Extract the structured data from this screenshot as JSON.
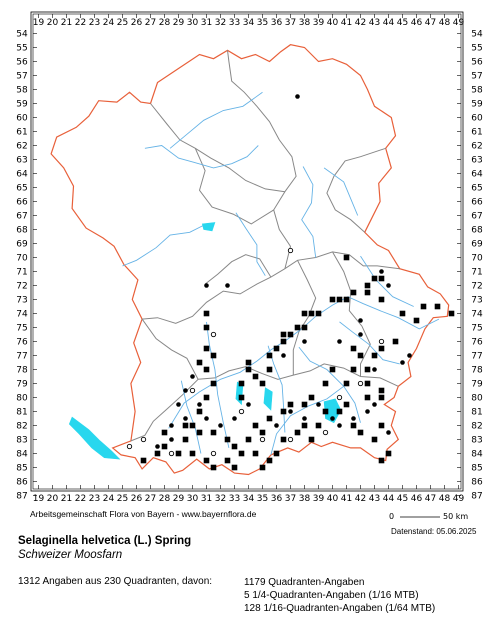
{
  "map": {
    "x_labels": [
      "19",
      "20",
      "21",
      "22",
      "23",
      "24",
      "25",
      "26",
      "27",
      "28",
      "29",
      "30",
      "31",
      "32",
      "33",
      "34",
      "35",
      "36",
      "37",
      "38",
      "39",
      "40",
      "41",
      "42",
      "43",
      "44",
      "45",
      "46",
      "47",
      "48",
      "49"
    ],
    "y_labels": [
      "54",
      "55",
      "56",
      "57",
      "58",
      "59",
      "60",
      "61",
      "62",
      "63",
      "64",
      "65",
      "66",
      "67",
      "68",
      "69",
      "70",
      "71",
      "72",
      "73",
      "74",
      "75",
      "76",
      "77",
      "78",
      "79",
      "80",
      "81",
      "82",
      "83",
      "84",
      "85",
      "86",
      "87"
    ],
    "colors": {
      "border_state": "#e8603a",
      "border_region": "#888888",
      "river": "#66b3e6",
      "lake": "#28d7ee",
      "marker": "#000000"
    },
    "records_quadrant": [
      [
        46.5,
        73.5
      ],
      [
        47.5,
        73.5
      ],
      [
        48.5,
        74.0
      ],
      [
        46.0,
        74.5
      ],
      [
        45.0,
        74.0
      ],
      [
        43.5,
        73.0
      ],
      [
        42.5,
        72.5
      ],
      [
        41.5,
        72.5
      ],
      [
        41.0,
        73.0
      ],
      [
        40.5,
        73.0
      ],
      [
        40.0,
        73.0
      ],
      [
        43.0,
        71.5
      ],
      [
        43.5,
        71.5
      ],
      [
        42.5,
        72.0
      ],
      [
        41.0,
        70.0
      ],
      [
        39.0,
        74.0
      ],
      [
        38.5,
        74.0
      ],
      [
        38.0,
        74.0
      ],
      [
        38.0,
        75.0
      ],
      [
        37.5,
        75.0
      ],
      [
        37.0,
        75.5
      ],
      [
        36.5,
        75.5
      ],
      [
        36.5,
        76.0
      ],
      [
        36.0,
        76.5
      ],
      [
        35.5,
        77.0
      ],
      [
        35.5,
        78.0
      ],
      [
        35.0,
        79.0
      ],
      [
        34.0,
        77.5
      ],
      [
        34.0,
        78.0
      ],
      [
        34.5,
        78.5
      ],
      [
        33.5,
        79.0
      ],
      [
        33.5,
        80.0
      ],
      [
        31.0,
        74.0
      ],
      [
        31.0,
        75.0
      ],
      [
        31.0,
        76.5
      ],
      [
        31.5,
        77.0
      ],
      [
        30.5,
        77.5
      ],
      [
        31.0,
        78.0
      ],
      [
        31.5,
        79.0
      ],
      [
        31.0,
        80.0
      ],
      [
        30.5,
        81.0
      ],
      [
        30.0,
        82.0
      ],
      [
        29.5,
        83.0
      ],
      [
        29.0,
        84.0
      ],
      [
        30.0,
        84.0
      ],
      [
        31.0,
        84.5
      ],
      [
        31.5,
        85.0
      ],
      [
        32.5,
        84.5
      ],
      [
        33.0,
        85.0
      ],
      [
        33.5,
        84.0
      ],
      [
        34.5,
        84.0
      ],
      [
        35.0,
        85.0
      ],
      [
        35.5,
        84.5
      ],
      [
        36.0,
        84.0
      ],
      [
        36.5,
        83.0
      ],
      [
        37.5,
        82.5
      ],
      [
        38.0,
        82.0
      ],
      [
        38.5,
        83.0
      ],
      [
        39.0,
        82.0
      ],
      [
        39.5,
        81.0
      ],
      [
        40.5,
        81.0
      ],
      [
        41.5,
        82.0
      ],
      [
        42.0,
        82.5
      ],
      [
        43.0,
        83.0
      ],
      [
        43.5,
        82.0
      ],
      [
        44.0,
        84.0
      ],
      [
        43.5,
        84.5
      ],
      [
        41.5,
        76.5
      ],
      [
        42.0,
        77.0
      ],
      [
        41.5,
        78.0
      ],
      [
        41.0,
        79.0
      ],
      [
        40.0,
        78.0
      ],
      [
        39.5,
        79.0
      ],
      [
        38.5,
        80.0
      ],
      [
        38.0,
        80.5
      ],
      [
        37.0,
        80.5
      ],
      [
        36.5,
        81.0
      ],
      [
        35.5,
        81.5
      ],
      [
        35.0,
        82.5
      ],
      [
        34.5,
        82.0
      ],
      [
        34.0,
        83.0
      ],
      [
        33.0,
        83.5
      ],
      [
        32.5,
        83.0
      ],
      [
        31.5,
        82.5
      ],
      [
        30.5,
        82.5
      ],
      [
        29.5,
        82.0
      ],
      [
        28.0,
        82.5
      ],
      [
        28.0,
        83.5
      ],
      [
        27.5,
        84.0
      ],
      [
        26.5,
        84.5
      ],
      [
        44.5,
        76.0
      ],
      [
        43.5,
        76.5
      ],
      [
        43.0,
        77.0
      ],
      [
        42.5,
        78.0
      ],
      [
        42.5,
        79.0
      ],
      [
        43.5,
        79.5
      ],
      [
        43.5,
        80.0
      ],
      [
        42.5,
        80.0
      ],
      [
        41.0,
        80.5
      ]
    ],
    "records_subquadrant": [
      [
        37.5,
        58.5
      ],
      [
        32.5,
        72.0
      ],
      [
        31.0,
        72.0
      ],
      [
        30.0,
        78.5
      ],
      [
        29.5,
        79.5
      ],
      [
        30.5,
        80.5
      ],
      [
        29.0,
        80.5
      ],
      [
        29.5,
        81.5
      ],
      [
        28.5,
        82.0
      ],
      [
        28.5,
        83.0
      ],
      [
        27.5,
        83.5
      ],
      [
        31.0,
        81.5
      ],
      [
        32.0,
        82.0
      ],
      [
        33.0,
        81.5
      ],
      [
        34.0,
        80.5
      ],
      [
        36.0,
        82.0
      ],
      [
        37.0,
        81.0
      ],
      [
        38.0,
        81.5
      ],
      [
        39.0,
        80.5
      ],
      [
        40.0,
        81.5
      ],
      [
        40.5,
        82.0
      ],
      [
        41.5,
        81.5
      ],
      [
        42.5,
        81.0
      ],
      [
        43.0,
        80.5
      ],
      [
        44.0,
        82.5
      ],
      [
        45.0,
        77.5
      ],
      [
        45.5,
        77.0
      ],
      [
        43.0,
        78.0
      ],
      [
        42.0,
        75.5
      ],
      [
        43.5,
        71.0
      ],
      [
        44.0,
        72.0
      ],
      [
        42.0,
        74.5
      ],
      [
        40.5,
        76.0
      ],
      [
        38.0,
        76.0
      ],
      [
        36.5,
        77.0
      ]
    ],
    "records_open": [
      [
        37.0,
        69.5
      ],
      [
        31.5,
        75.5
      ],
      [
        25.5,
        83.5
      ],
      [
        26.5,
        83.0
      ],
      [
        28.5,
        84.0
      ],
      [
        31.5,
        84.0
      ],
      [
        33.5,
        81.0
      ],
      [
        35.0,
        83.0
      ],
      [
        37.0,
        83.0
      ],
      [
        39.5,
        82.5
      ],
      [
        40.5,
        80.0
      ],
      [
        42.0,
        79.0
      ],
      [
        43.5,
        76.0
      ],
      [
        30.0,
        79.5
      ]
    ]
  },
  "attribution": "Arbeitsgemeinschaft Flora von Bayern - www.bayernflora.de",
  "scale": {
    "start_label": "0",
    "end_label": "50 km"
  },
  "datenstand": "Datenstand: 05.06.2025",
  "species": {
    "scientific_name": "Selaginella helvetica (L.) Spring",
    "common_name": "Schweizer Moosfarn"
  },
  "summary": "1312 Angaben aus 230 Quadranten, davon:",
  "stats": {
    "line1": "1179 Quadranten-Angaben",
    "line2": "5 1/4-Quadranten-Angaben (1/16 MTB)",
    "line3": "128 1/16-Quadranten-Angaben (1/64 MTB)"
  }
}
